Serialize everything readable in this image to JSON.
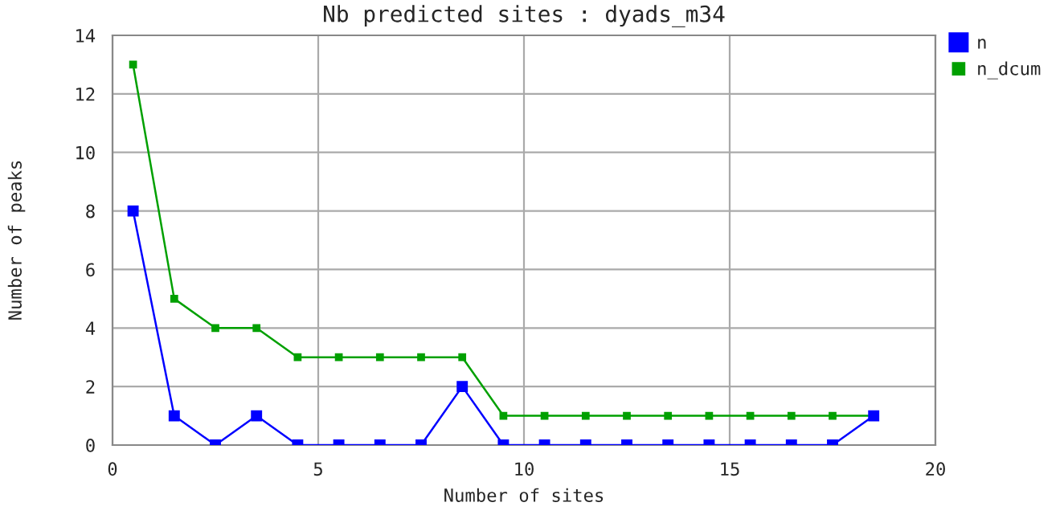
{
  "chart_data": {
    "type": "line",
    "title": "Nb predicted sites : dyads_m34",
    "xlabel": "Number of sites",
    "ylabel": "Number of peaks",
    "x": [
      0.5,
      1.5,
      2.5,
      3.5,
      4.5,
      5.5,
      6.5,
      7.5,
      8.5,
      9.5,
      10.5,
      11.5,
      12.5,
      13.5,
      14.5,
      15.5,
      16.5,
      17.5,
      18.5
    ],
    "series": [
      {
        "name": "n",
        "color": "#0000ff",
        "values": [
          8,
          1,
          0,
          1,
          0,
          0,
          0,
          0,
          2,
          0,
          0,
          0,
          0,
          0,
          0,
          0,
          0,
          0,
          1
        ]
      },
      {
        "name": "n_dcum",
        "color": "#00a000",
        "values": [
          13,
          5,
          4,
          4,
          3,
          3,
          3,
          3,
          3,
          1,
          1,
          1,
          1,
          1,
          1,
          1,
          1,
          1,
          1
        ]
      }
    ],
    "xlim": [
      0,
      20
    ],
    "xticks": [
      0,
      5,
      10,
      15,
      20
    ],
    "ylim": [
      0,
      14
    ],
    "yticks": [
      0,
      2,
      4,
      6,
      8,
      10,
      12,
      14
    ],
    "grid": true,
    "legend": "top right",
    "marker": "square",
    "line_style": "solid"
  }
}
